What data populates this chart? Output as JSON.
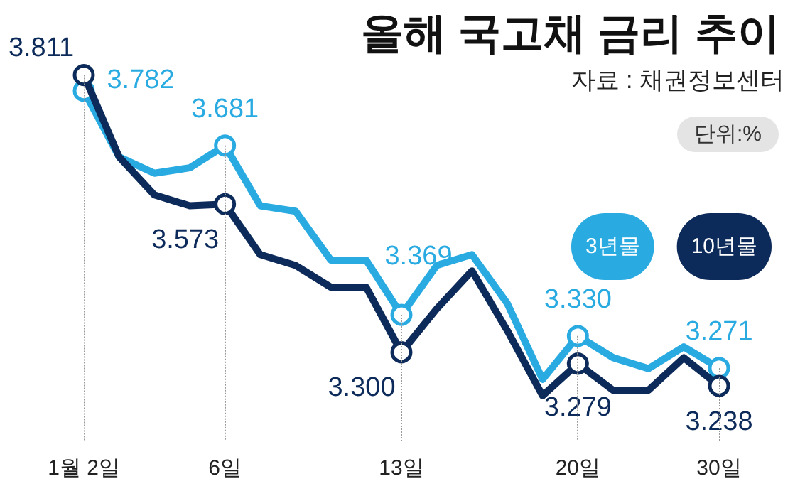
{
  "chart_data": {
    "type": "line",
    "title": "올해 국고채 금리 추이",
    "annotations": [
      "자료 : 채권정보센터",
      "단위:%"
    ],
    "categories": [
      "1월 2일",
      null,
      null,
      null,
      "6일",
      null,
      null,
      null,
      null,
      "13일",
      null,
      null,
      null,
      null,
      "20일",
      null,
      null,
      null,
      "30일"
    ],
    "series": [
      {
        "name": "3년물",
        "color": "#29abe2",
        "values": [
          3.782,
          3.66,
          3.63,
          3.64,
          3.681,
          3.57,
          3.56,
          3.47,
          3.47,
          3.369,
          3.46,
          3.48,
          3.39,
          3.25,
          3.33,
          3.29,
          3.27,
          3.31,
          3.271
        ],
        "value_labels": [
          "3.782",
          null,
          null,
          null,
          "3.681",
          null,
          null,
          null,
          null,
          "3.369",
          null,
          null,
          null,
          null,
          "3.330",
          null,
          null,
          null,
          "3.271"
        ]
      },
      {
        "name": "10년물",
        "color": "#0d2b5a",
        "values": [
          3.811,
          3.66,
          3.59,
          3.57,
          3.573,
          3.48,
          3.46,
          3.42,
          3.42,
          3.3,
          3.38,
          3.45,
          3.34,
          3.22,
          3.279,
          3.23,
          3.23,
          3.29,
          3.238
        ],
        "value_labels": [
          "3.811",
          null,
          null,
          null,
          "3.573",
          null,
          null,
          null,
          null,
          "3.300",
          null,
          null,
          null,
          null,
          "3.279",
          null,
          null,
          null,
          "3.238"
        ]
      }
    ],
    "tick_labels": "x",
    "grid": false,
    "legend": "right",
    "line_style": "solid",
    "ref_lines": [
      {
        "axis": "x",
        "value": "1월 2일",
        "color": "#999999",
        "line_style": "dotted"
      },
      {
        "axis": "x",
        "value": "6일",
        "color": "#999999",
        "line_style": "dotted"
      },
      {
        "axis": "x",
        "value": "13일",
        "color": "#999999",
        "line_style": "dotted"
      },
      {
        "axis": "x",
        "value": "20일",
        "color": "#999999",
        "line_style": "dotted"
      },
      {
        "axis": "x",
        "value": "30일",
        "color": "#999999",
        "line_style": "dotted"
      }
    ]
  }
}
